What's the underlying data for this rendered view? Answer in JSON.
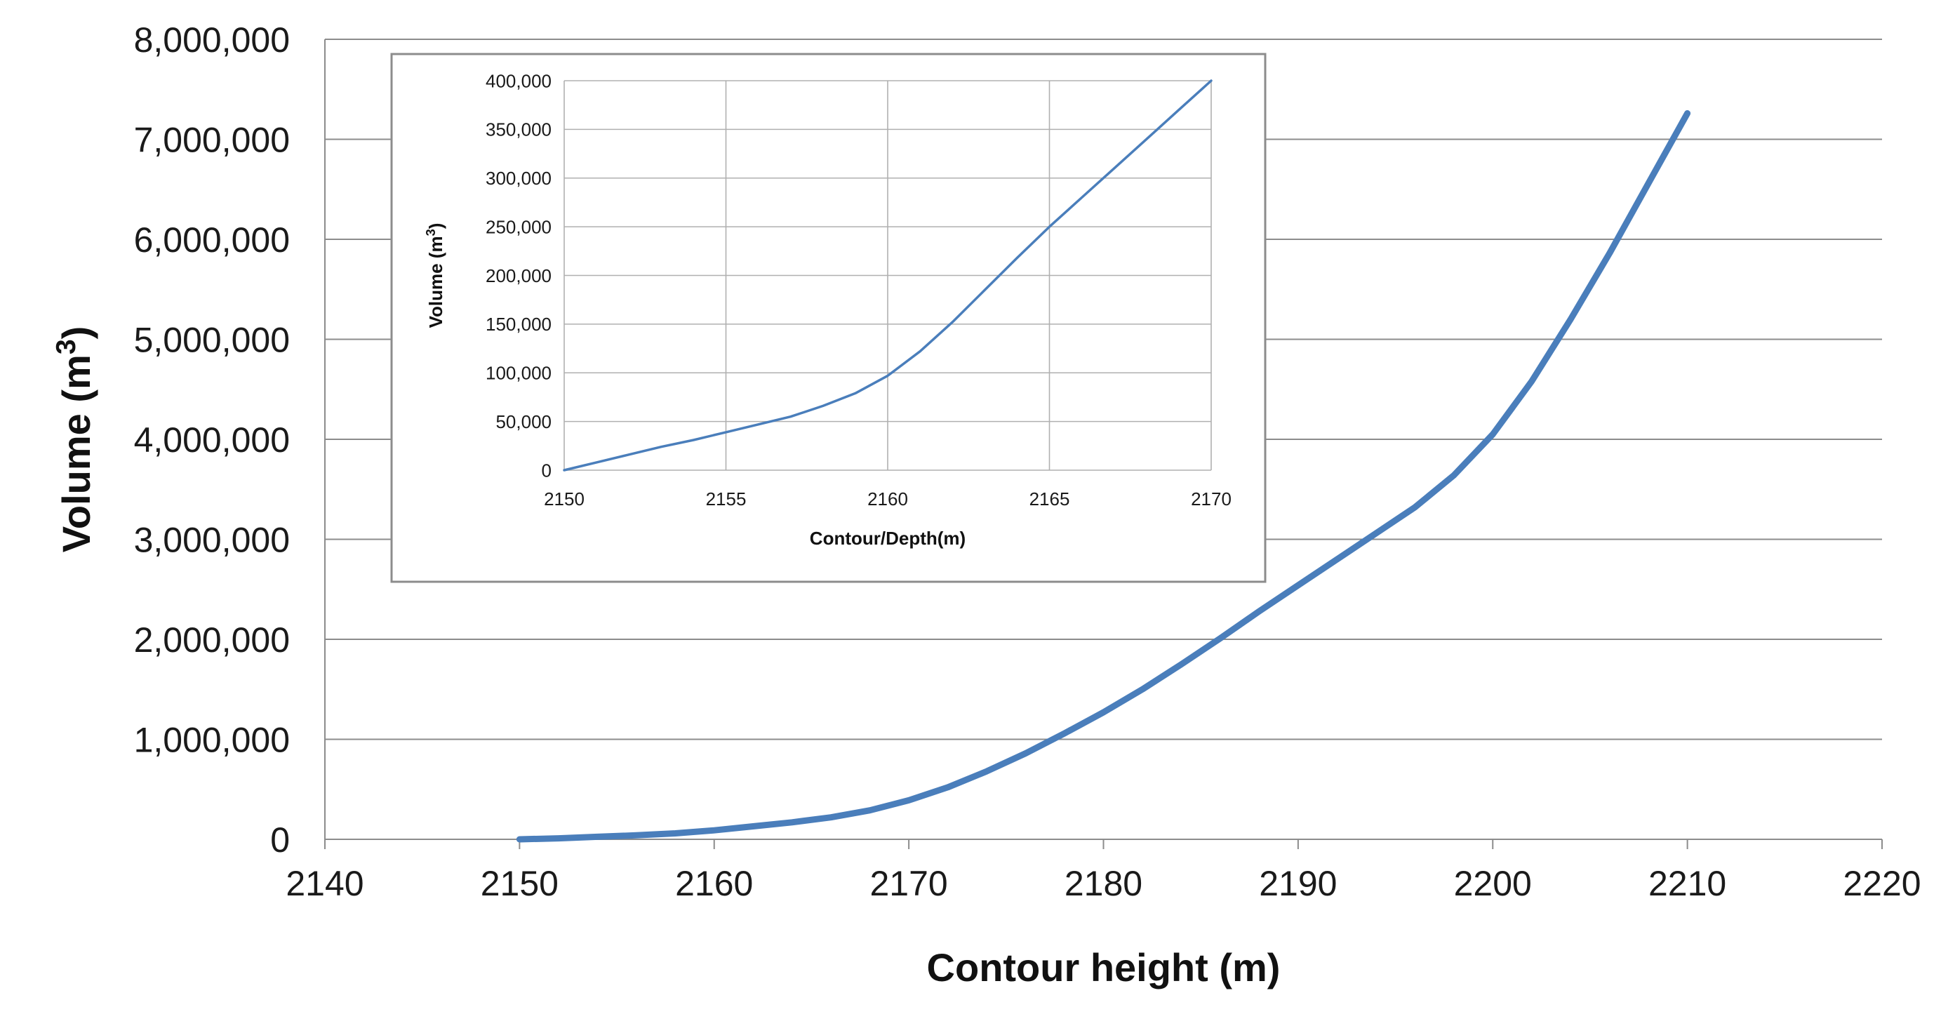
{
  "chart_data": [
    {
      "type": "line",
      "xlabel": "Contour height (m)",
      "ylabel": "Volume (m³)",
      "xlim": [
        2140,
        2220
      ],
      "ylim": [
        0,
        8000000
      ],
      "x_ticks": [
        2140,
        2150,
        2160,
        2170,
        2180,
        2190,
        2200,
        2210,
        2220
      ],
      "y_ticks": [
        0,
        1000000,
        2000000,
        3000000,
        4000000,
        5000000,
        6000000,
        7000000,
        8000000
      ],
      "y_tick_labels": [
        "0",
        "1,000,000",
        "2,000,000",
        "3,000,000",
        "4,000,000",
        "5,000,000",
        "6,000,000",
        "7,000,000",
        "8,000,000"
      ],
      "grid": "horizontal",
      "color": "#4a7ebb",
      "series": [
        {
          "x": [
            2150,
            2152,
            2154,
            2156,
            2158,
            2160,
            2162,
            2164,
            2166,
            2168,
            2170,
            2172,
            2174,
            2176,
            2178,
            2180,
            2182,
            2184,
            2186,
            2188,
            2190,
            2192,
            2194,
            2196,
            2198,
            2200,
            2202,
            2204,
            2206,
            2208,
            2210
          ],
          "y": [
            0,
            10000,
            25000,
            40000,
            60000,
            90000,
            130000,
            170000,
            220000,
            290000,
            390000,
            520000,
            680000,
            860000,
            1060000,
            1270000,
            1500000,
            1750000,
            2010000,
            2280000,
            2540000,
            2800000,
            3060000,
            3320000,
            3640000,
            4050000,
            4580000,
            5200000,
            5860000,
            6560000,
            7260000
          ]
        }
      ]
    },
    {
      "type": "line",
      "xlabel": "Contour/Depth(m)",
      "ylabel": "Volume (m³)",
      "xlim": [
        2150,
        2170
      ],
      "ylim": [
        0,
        400000
      ],
      "x_ticks": [
        2150,
        2155,
        2160,
        2165,
        2170
      ],
      "y_ticks": [
        0,
        50000,
        100000,
        150000,
        200000,
        250000,
        300000,
        350000,
        400000
      ],
      "y_tick_labels": [
        "0",
        "50,000",
        "100,000",
        "150,000",
        "200,000",
        "250,000",
        "300,000",
        "350,000",
        "400,000"
      ],
      "grid": "both",
      "color": "#4a7ebb",
      "series": [
        {
          "x": [
            2150,
            2151,
            2152,
            2153,
            2154,
            2155,
            2156,
            2157,
            2158,
            2159,
            2160,
            2161,
            2162,
            2163,
            2164,
            2165,
            2166,
            2167,
            2168,
            2169,
            2170
          ],
          "y": [
            0,
            8000,
            16000,
            24000,
            31000,
            39000,
            47000,
            55000,
            66000,
            79000,
            97000,
            122000,
            152000,
            185000,
            218000,
            250000,
            280000,
            310000,
            340000,
            370000,
            400000
          ]
        }
      ]
    }
  ]
}
